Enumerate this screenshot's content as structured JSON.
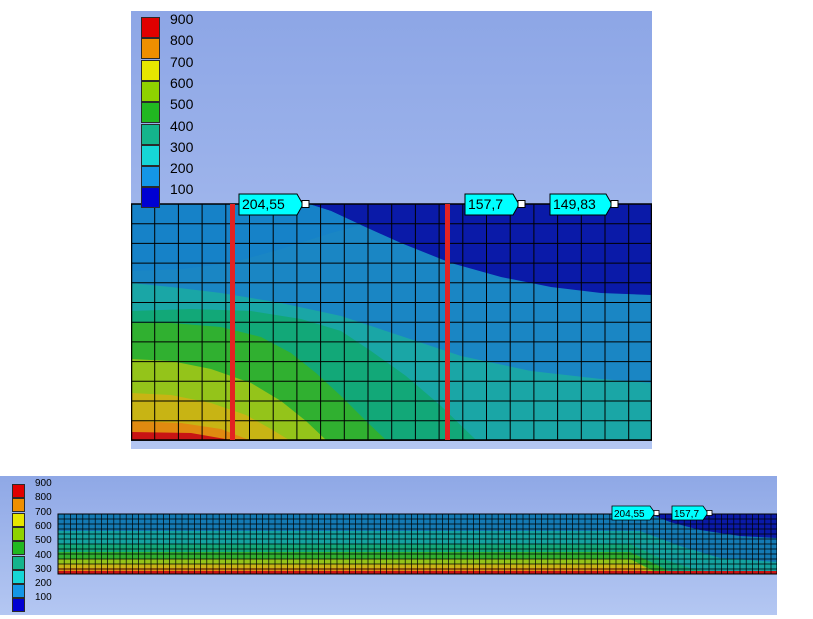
{
  "legend": {
    "ticks": [
      "900",
      "800",
      "700",
      "600",
      "500",
      "400",
      "300",
      "200",
      "100"
    ],
    "colors": [
      "#e00000",
      "#ee8f00",
      "#e6e600",
      "#8fd200",
      "#21b821",
      "#14b48c",
      "#16d6d6",
      "#1496e6",
      "#0000d2"
    ]
  },
  "top_view": {
    "probes": [
      {
        "label": "204,55"
      },
      {
        "label": "157,7"
      },
      {
        "label": "149,83"
      }
    ],
    "marker_color": "#e32222",
    "callout_color": "#00ffff"
  },
  "bottom_view": {
    "probes": [
      {
        "label": "204,55"
      },
      {
        "label": "157,7"
      }
    ]
  }
}
